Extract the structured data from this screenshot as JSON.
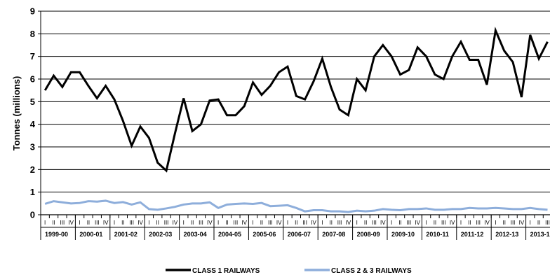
{
  "chart_data": {
    "type": "line",
    "title": "",
    "xlabel": "",
    "ylabel": "Tonnes (millions)",
    "ylim": [
      0,
      9
    ],
    "yticks": [
      0,
      1,
      2,
      3,
      4,
      5,
      6,
      7,
      8,
      9
    ],
    "grid": "horizontal",
    "legend_position": "bottom",
    "quarter_labels": [
      "I",
      "II",
      "III",
      "IV"
    ],
    "year_labels": [
      "1999-00",
      "2000-01",
      "2001-02",
      "2002-03",
      "2003-04",
      "2004-05",
      "2005-06",
      "2006-07",
      "2007-08",
      "2008-09",
      "2009-10",
      "2010-11",
      "2011-12",
      "2012-13",
      "2013-1"
    ],
    "series": [
      {
        "name": "CLASS 1 RAILWAYS",
        "color": "#000000",
        "values": [
          5.5,
          6.15,
          5.65,
          6.3,
          6.3,
          5.7,
          5.15,
          5.7,
          5.1,
          4.15,
          3.05,
          3.9,
          3.4,
          2.3,
          1.95,
          3.6,
          5.15,
          3.7,
          4.0,
          5.05,
          5.1,
          4.4,
          4.4,
          4.8,
          5.85,
          5.3,
          5.7,
          6.3,
          6.55,
          5.25,
          5.1,
          5.9,
          6.9,
          5.65,
          4.65,
          4.4,
          6.0,
          5.5,
          7.0,
          7.5,
          7.0,
          6.2,
          6.4,
          7.4,
          7.0,
          6.2,
          6.0,
          7.0,
          7.65,
          6.85,
          6.85,
          5.75,
          8.15,
          7.25,
          6.75,
          5.2,
          7.95,
          6.9,
          7.65
        ]
      },
      {
        "name": "CLASS 2 & 3 RAILWAYS",
        "color": "#8eaedb",
        "values": [
          0.48,
          0.6,
          0.55,
          0.5,
          0.52,
          0.6,
          0.58,
          0.62,
          0.52,
          0.56,
          0.45,
          0.55,
          0.25,
          0.22,
          0.28,
          0.35,
          0.45,
          0.5,
          0.5,
          0.55,
          0.3,
          0.45,
          0.48,
          0.5,
          0.48,
          0.52,
          0.38,
          0.4,
          0.42,
          0.3,
          0.15,
          0.2,
          0.2,
          0.15,
          0.15,
          0.12,
          0.18,
          0.15,
          0.18,
          0.25,
          0.22,
          0.2,
          0.25,
          0.25,
          0.28,
          0.22,
          0.22,
          0.25,
          0.25,
          0.3,
          0.28,
          0.28,
          0.3,
          0.28,
          0.25,
          0.25,
          0.3,
          0.25,
          0.22
        ]
      }
    ]
  }
}
